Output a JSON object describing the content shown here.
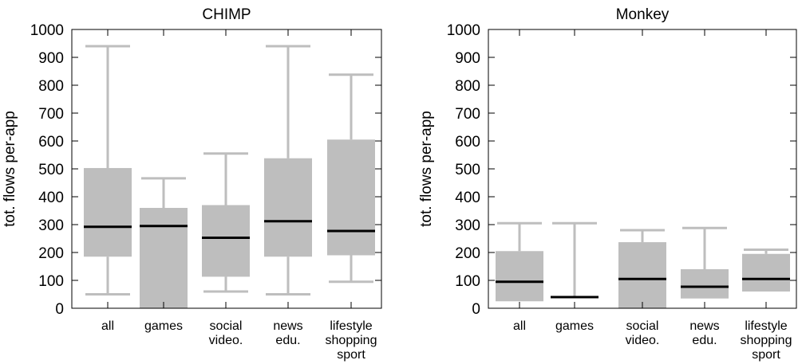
{
  "chart_data": [
    {
      "type": "boxplot",
      "title": "CHIMP",
      "ylabel": "tot. flows per-app",
      "ylim": [
        0,
        1000
      ],
      "yticks": [
        0,
        100,
        200,
        300,
        400,
        500,
        600,
        700,
        800,
        900,
        1000
      ],
      "categories": [
        [
          "all"
        ],
        [
          "games"
        ],
        [
          "social",
          "video."
        ],
        [
          "news",
          "edu."
        ],
        [
          "lifestyle",
          "shopping",
          "sport"
        ]
      ],
      "boxes": [
        {
          "whisker_low": 50,
          "q1": 185,
          "median": 292,
          "q3": 503,
          "whisker_high": 940
        },
        {
          "whisker_low": null,
          "q1": 0,
          "median": 295,
          "q3": 360,
          "whisker_high": 466
        },
        {
          "whisker_low": 60,
          "q1": 113,
          "median": 253,
          "q3": 370,
          "whisker_high": 555
        },
        {
          "whisker_low": 50,
          "q1": 185,
          "median": 312,
          "q3": 538,
          "whisker_high": 940
        },
        {
          "whisker_low": 95,
          "q1": 190,
          "median": 277,
          "q3": 605,
          "whisker_high": 838
        }
      ]
    },
    {
      "type": "boxplot",
      "title": "Monkey",
      "ylabel": "tot. flows per-app",
      "ylim": [
        0,
        1000
      ],
      "yticks": [
        0,
        100,
        200,
        300,
        400,
        500,
        600,
        700,
        800,
        900,
        1000
      ],
      "categories": [
        [
          "all"
        ],
        [
          "games"
        ],
        [
          "social",
          "video."
        ],
        [
          "news",
          "edu."
        ],
        [
          "lifestyle",
          "shopping",
          "sport"
        ]
      ],
      "boxes": [
        {
          "whisker_low": null,
          "q1": 25,
          "median": 95,
          "q3": 205,
          "whisker_high": 305
        },
        {
          "whisker_low": null,
          "q1": 40,
          "median": 40,
          "q3": 40,
          "whisker_high": 305
        },
        {
          "whisker_low": null,
          "q1": 0,
          "median": 105,
          "q3": 237,
          "whisker_high": 280
        },
        {
          "whisker_low": null,
          "q1": 35,
          "median": 77,
          "q3": 140,
          "whisker_high": 288
        },
        {
          "whisker_low": null,
          "q1": 60,
          "median": 105,
          "q3": 195,
          "whisker_high": 210
        }
      ]
    }
  ],
  "colors": {
    "box": "#bebebe",
    "median": "#000000",
    "axis": "#000000"
  }
}
